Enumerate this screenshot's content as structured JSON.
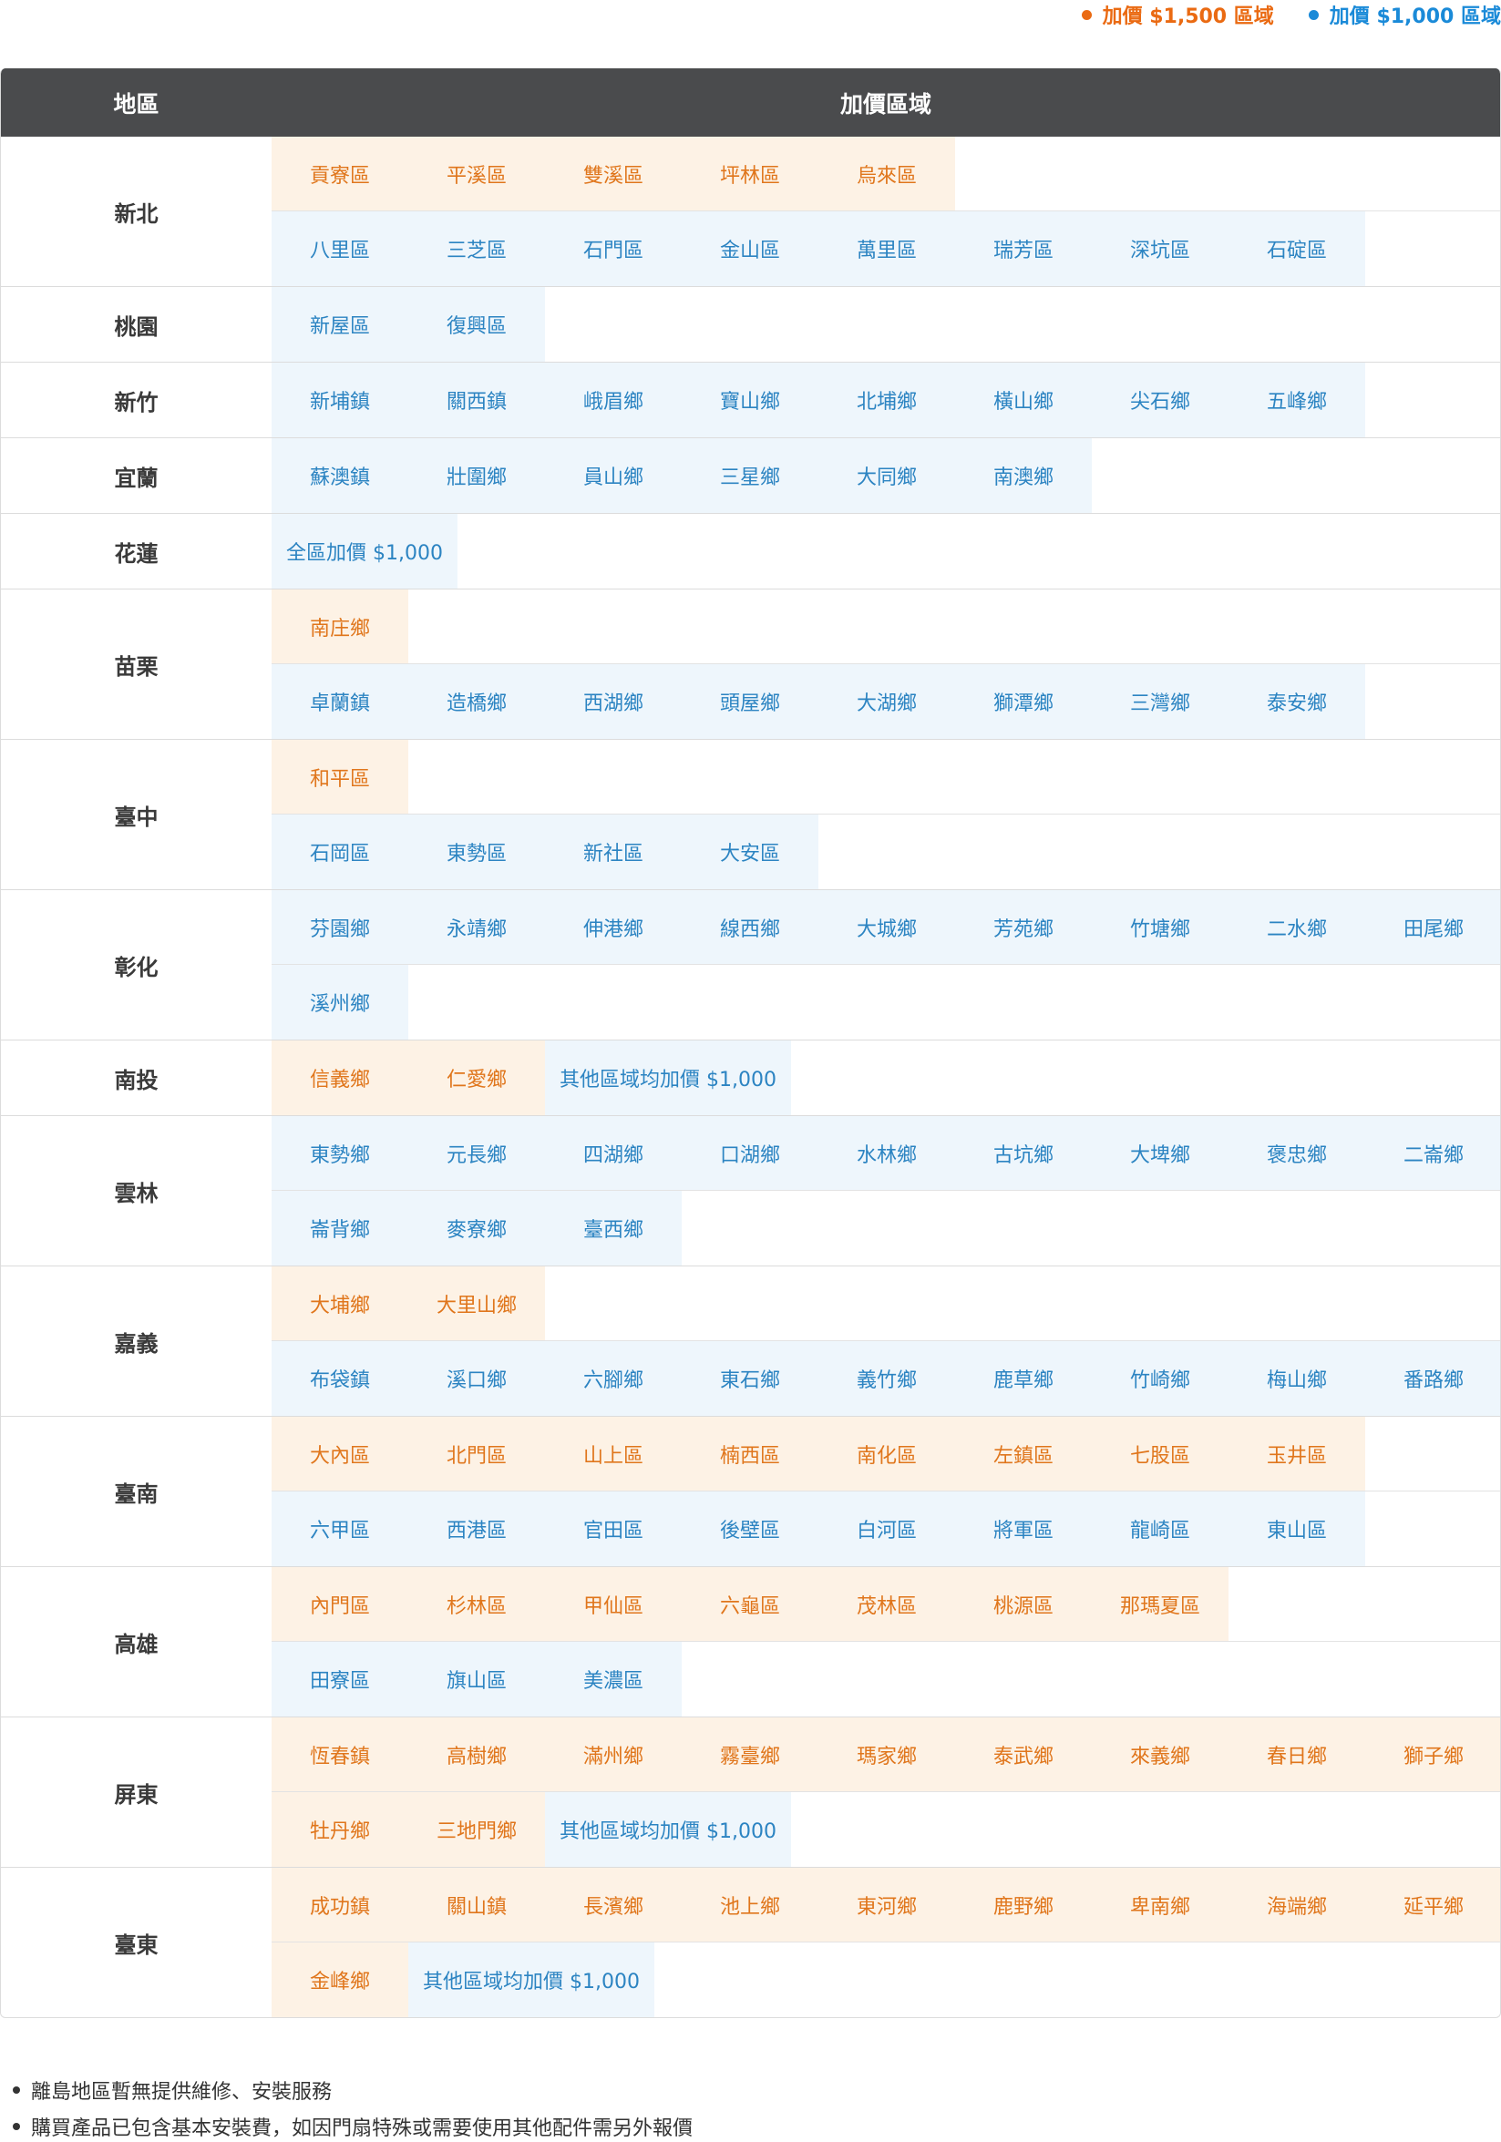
{
  "legend": {
    "orange_label": "加價 $1,500 區域",
    "blue_label": "加價 $1,000 區域",
    "colors": {
      "orange": "#ea6a12",
      "blue": "#1a8ad8"
    }
  },
  "table": {
    "header": {
      "region": "地區",
      "zones": "加價區域"
    },
    "regions": [
      {
        "name": "新北",
        "lines": [
          [
            {
              "t": "o",
              "label": "貢寮區"
            },
            {
              "t": "o",
              "label": "平溪區"
            },
            {
              "t": "o",
              "label": "雙溪區"
            },
            {
              "t": "o",
              "label": "坪林區"
            },
            {
              "t": "o",
              "label": "烏來區"
            }
          ],
          [
            {
              "t": "b",
              "label": "八里區"
            },
            {
              "t": "b",
              "label": "三芝區"
            },
            {
              "t": "b",
              "label": "石門區"
            },
            {
              "t": "b",
              "label": "金山區"
            },
            {
              "t": "b",
              "label": "萬里區"
            },
            {
              "t": "b",
              "label": "瑞芳區"
            },
            {
              "t": "b",
              "label": "深坑區"
            },
            {
              "t": "b",
              "label": "石碇區"
            }
          ]
        ]
      },
      {
        "name": "桃園",
        "lines": [
          [
            {
              "t": "b",
              "label": "新屋區"
            },
            {
              "t": "b",
              "label": "復興區"
            }
          ]
        ]
      },
      {
        "name": "新竹",
        "lines": [
          [
            {
              "t": "b",
              "label": "新埔鎮"
            },
            {
              "t": "b",
              "label": "關西鎮"
            },
            {
              "t": "b",
              "label": "峨眉鄉"
            },
            {
              "t": "b",
              "label": "寶山鄉"
            },
            {
              "t": "b",
              "label": "北埔鄉"
            },
            {
              "t": "b",
              "label": "橫山鄉"
            },
            {
              "t": "b",
              "label": "尖石鄉"
            },
            {
              "t": "b",
              "label": "五峰鄉"
            }
          ]
        ]
      },
      {
        "name": "宜蘭",
        "lines": [
          [
            {
              "t": "b",
              "label": "蘇澳鎮"
            },
            {
              "t": "b",
              "label": "壯圍鄉"
            },
            {
              "t": "b",
              "label": "員山鄉"
            },
            {
              "t": "b",
              "label": "三星鄉"
            },
            {
              "t": "b",
              "label": "大同鄉"
            },
            {
              "t": "b",
              "label": "南澳鄉"
            }
          ]
        ]
      },
      {
        "name": "花蓮",
        "lines": [
          [
            {
              "t": "b",
              "label": "全區加價 $1,000",
              "wide": true
            }
          ]
        ]
      },
      {
        "name": "苗栗",
        "lines": [
          [
            {
              "t": "o",
              "label": "南庄鄉"
            }
          ],
          [
            {
              "t": "b",
              "label": "卓蘭鎮"
            },
            {
              "t": "b",
              "label": "造橋鄉"
            },
            {
              "t": "b",
              "label": "西湖鄉"
            },
            {
              "t": "b",
              "label": "頭屋鄉"
            },
            {
              "t": "b",
              "label": "大湖鄉"
            },
            {
              "t": "b",
              "label": "獅潭鄉"
            },
            {
              "t": "b",
              "label": "三灣鄉"
            },
            {
              "t": "b",
              "label": "泰安鄉"
            }
          ]
        ]
      },
      {
        "name": "臺中",
        "lines": [
          [
            {
              "t": "o",
              "label": "和平區"
            }
          ],
          [
            {
              "t": "b",
              "label": "石岡區"
            },
            {
              "t": "b",
              "label": "東勢區"
            },
            {
              "t": "b",
              "label": "新社區"
            },
            {
              "t": "b",
              "label": "大安區"
            }
          ]
        ]
      },
      {
        "name": "彰化",
        "lines": [
          [
            {
              "t": "b",
              "label": "芬園鄉"
            },
            {
              "t": "b",
              "label": "永靖鄉"
            },
            {
              "t": "b",
              "label": "伸港鄉"
            },
            {
              "t": "b",
              "label": "線西鄉"
            },
            {
              "t": "b",
              "label": "大城鄉"
            },
            {
              "t": "b",
              "label": "芳苑鄉"
            },
            {
              "t": "b",
              "label": "竹塘鄉"
            },
            {
              "t": "b",
              "label": "二水鄉"
            },
            {
              "t": "b",
              "label": "田尾鄉"
            }
          ],
          [
            {
              "t": "b",
              "label": "溪州鄉"
            }
          ]
        ]
      },
      {
        "name": "南投",
        "lines": [
          [
            {
              "t": "o",
              "label": "信義鄉"
            },
            {
              "t": "o",
              "label": "仁愛鄉"
            },
            {
              "t": "b",
              "label": "其他區域均加價 $1,000",
              "wide": true
            }
          ]
        ]
      },
      {
        "name": "雲林",
        "lines": [
          [
            {
              "t": "b",
              "label": "東勢鄉"
            },
            {
              "t": "b",
              "label": "元長鄉"
            },
            {
              "t": "b",
              "label": "四湖鄉"
            },
            {
              "t": "b",
              "label": "口湖鄉"
            },
            {
              "t": "b",
              "label": "水林鄉"
            },
            {
              "t": "b",
              "label": "古坑鄉"
            },
            {
              "t": "b",
              "label": "大埤鄉"
            },
            {
              "t": "b",
              "label": "褒忠鄉"
            },
            {
              "t": "b",
              "label": "二崙鄉"
            }
          ],
          [
            {
              "t": "b",
              "label": "崙背鄉"
            },
            {
              "t": "b",
              "label": "麥寮鄉"
            },
            {
              "t": "b",
              "label": "臺西鄉"
            }
          ]
        ]
      },
      {
        "name": "嘉義",
        "lines": [
          [
            {
              "t": "o",
              "label": "大埔鄉"
            },
            {
              "t": "o",
              "label": "大里山鄉"
            }
          ],
          [
            {
              "t": "b",
              "label": "布袋鎮"
            },
            {
              "t": "b",
              "label": "溪口鄉"
            },
            {
              "t": "b",
              "label": "六腳鄉"
            },
            {
              "t": "b",
              "label": "東石鄉"
            },
            {
              "t": "b",
              "label": "義竹鄉"
            },
            {
              "t": "b",
              "label": "鹿草鄉"
            },
            {
              "t": "b",
              "label": "竹崎鄉"
            },
            {
              "t": "b",
              "label": "梅山鄉"
            },
            {
              "t": "b",
              "label": "番路鄉"
            }
          ]
        ]
      },
      {
        "name": "臺南",
        "lines": [
          [
            {
              "t": "o",
              "label": "大內區"
            },
            {
              "t": "o",
              "label": "北門區"
            },
            {
              "t": "o",
              "label": "山上區"
            },
            {
              "t": "o",
              "label": "楠西區"
            },
            {
              "t": "o",
              "label": "南化區"
            },
            {
              "t": "o",
              "label": "左鎮區"
            },
            {
              "t": "o",
              "label": "七股區"
            },
            {
              "t": "o",
              "label": "玉井區"
            }
          ],
          [
            {
              "t": "b",
              "label": "六甲區"
            },
            {
              "t": "b",
              "label": "西港區"
            },
            {
              "t": "b",
              "label": "官田區"
            },
            {
              "t": "b",
              "label": "後壁區"
            },
            {
              "t": "b",
              "label": "白河區"
            },
            {
              "t": "b",
              "label": "將軍區"
            },
            {
              "t": "b",
              "label": "龍崎區"
            },
            {
              "t": "b",
              "label": "東山區"
            }
          ]
        ]
      },
      {
        "name": "高雄",
        "lines": [
          [
            {
              "t": "o",
              "label": "內門區"
            },
            {
              "t": "o",
              "label": "杉林區"
            },
            {
              "t": "o",
              "label": "甲仙區"
            },
            {
              "t": "o",
              "label": "六龜區"
            },
            {
              "t": "o",
              "label": "茂林區"
            },
            {
              "t": "o",
              "label": "桃源區"
            },
            {
              "t": "o",
              "label": "那瑪夏區"
            }
          ],
          [
            {
              "t": "b",
              "label": "田寮區"
            },
            {
              "t": "b",
              "label": "旗山區"
            },
            {
              "t": "b",
              "label": "美濃區"
            }
          ]
        ]
      },
      {
        "name": "屏東",
        "lines": [
          [
            {
              "t": "o",
              "label": "恆春鎮"
            },
            {
              "t": "o",
              "label": "高樹鄉"
            },
            {
              "t": "o",
              "label": "滿州鄉"
            },
            {
              "t": "o",
              "label": "霧臺鄉"
            },
            {
              "t": "o",
              "label": "瑪家鄉"
            },
            {
              "t": "o",
              "label": "泰武鄉"
            },
            {
              "t": "o",
              "label": "來義鄉"
            },
            {
              "t": "o",
              "label": "春日鄉"
            },
            {
              "t": "o",
              "label": "獅子鄉"
            }
          ],
          [
            {
              "t": "o",
              "label": "牡丹鄉"
            },
            {
              "t": "o",
              "label": "三地門鄉"
            },
            {
              "t": "b",
              "label": "其他區域均加價 $1,000",
              "wide": true
            }
          ]
        ]
      },
      {
        "name": "臺東",
        "lines": [
          [
            {
              "t": "o",
              "label": "成功鎮"
            },
            {
              "t": "o",
              "label": "關山鎮"
            },
            {
              "t": "o",
              "label": "長濱鄉"
            },
            {
              "t": "o",
              "label": "池上鄉"
            },
            {
              "t": "o",
              "label": "東河鄉"
            },
            {
              "t": "o",
              "label": "鹿野鄉"
            },
            {
              "t": "o",
              "label": "卑南鄉"
            },
            {
              "t": "o",
              "label": "海端鄉"
            },
            {
              "t": "o",
              "label": "延平鄉"
            }
          ],
          [
            {
              "t": "o",
              "label": "金峰鄉"
            },
            {
              "t": "b",
              "label": "其他區域均加價 $1,000",
              "wide": true
            }
          ]
        ]
      }
    ]
  },
  "notes": [
    "離島地區暫無提供維修、安裝服務",
    "購買產品已包含基本安裝費，如因門扇特殊或需要使用其他配件需另外報價"
  ]
}
